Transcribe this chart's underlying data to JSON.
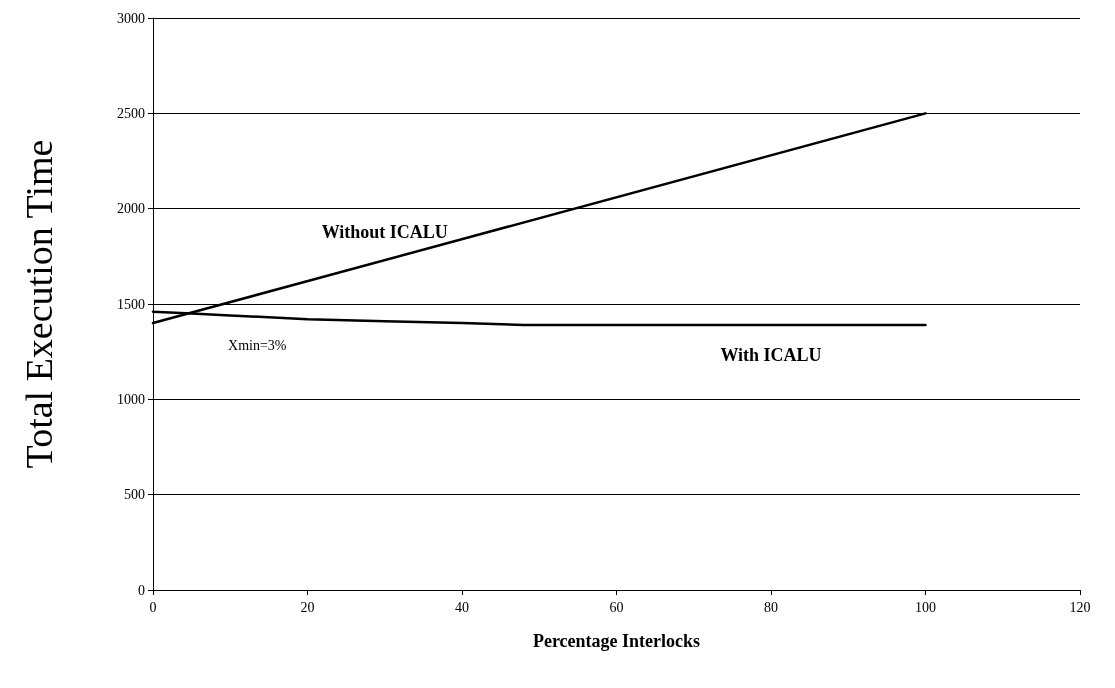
{
  "chart_data": {
    "type": "line",
    "xlabel": "Percentage Interlocks",
    "ylabel": "Total Execution Time",
    "annotations": [
      "Xmin=3%"
    ],
    "series": [
      {
        "name": "Without ICALU",
        "color": "#000000",
        "x": [
          0,
          100
        ],
        "values": [
          1400,
          2500
        ]
      },
      {
        "name": "With ICALU",
        "color": "#000000",
        "x": [
          0,
          5,
          10,
          20,
          30,
          40,
          48,
          100
        ],
        "values": [
          1460,
          1450,
          1440,
          1420,
          1410,
          1400,
          1390,
          1390
        ]
      }
    ],
    "xlim": [
      0,
      120
    ],
    "xticks": [
      0,
      20,
      40,
      60,
      80,
      100,
      120
    ],
    "ylim": [
      0,
      3000
    ],
    "yticks": [
      0,
      500,
      1000,
      1500,
      2000,
      2500,
      3000
    ],
    "grid": "y",
    "legend": false,
    "marker": "none",
    "line_style": "solid"
  }
}
